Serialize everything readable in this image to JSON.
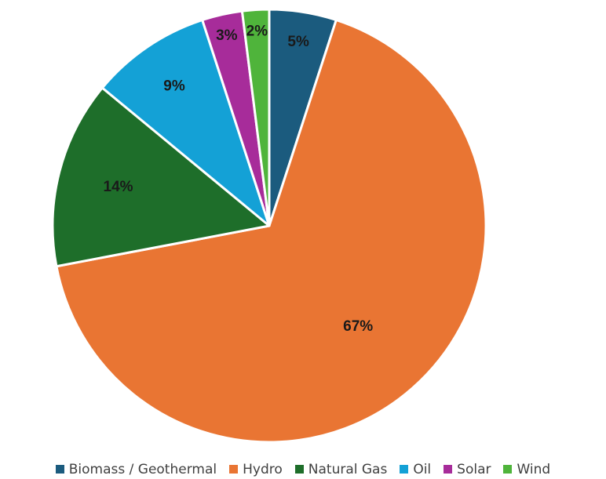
{
  "chart_data": {
    "type": "pie",
    "title": "",
    "slices": [
      {
        "label": "Biomass / Geothermal",
        "value": 5,
        "display": "5%",
        "color": "#1b5b7e"
      },
      {
        "label": "Hydro",
        "value": 67,
        "display": "67%",
        "color": "#e97533"
      },
      {
        "label": "Natural Gas",
        "value": 14,
        "display": "14%",
        "color": "#1e6e2a"
      },
      {
        "label": "Oil",
        "value": 9,
        "display": "9%",
        "color": "#14a1d6"
      },
      {
        "label": "Solar",
        "value": 3,
        "display": "3%",
        "color": "#a72c9a"
      },
      {
        "label": "Wind",
        "value": 2,
        "display": "2%",
        "color": "#4fb43b"
      }
    ],
    "legend_position": "bottom"
  }
}
